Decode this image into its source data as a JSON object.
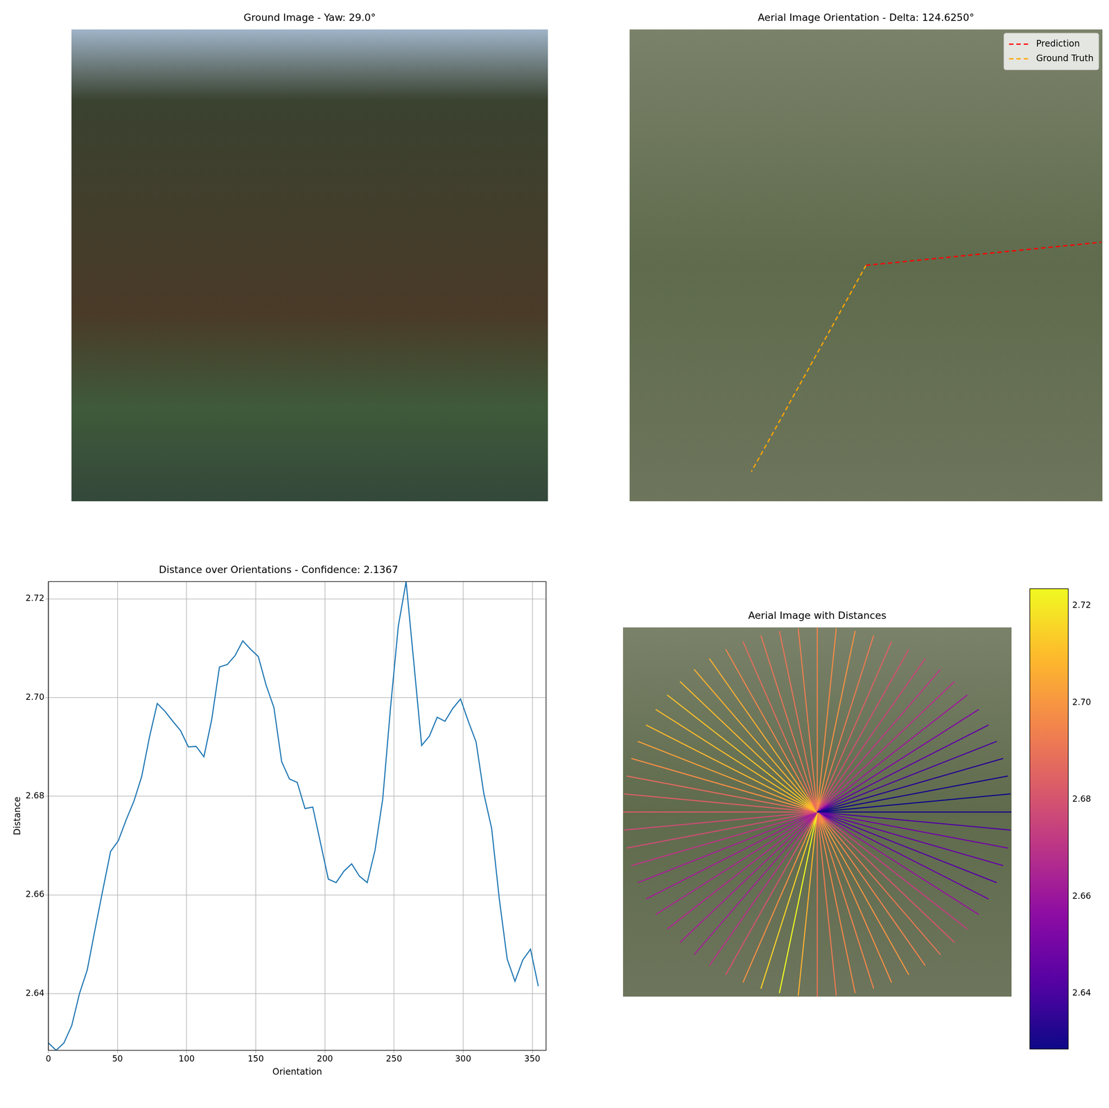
{
  "chart_data": [
    {
      "type": "image",
      "title": "Ground Image - Yaw: 29.0°",
      "tick_labels": false
    },
    {
      "type": "orientation",
      "title": "Aerial Image Orientation - Delta: 124.6250°",
      "legend": "upper right",
      "line_style": "dashed",
      "tick_labels": false,
      "series": [
        {
          "name": "Prediction",
          "color": "#ff0000",
          "angle": 5.625
        },
        {
          "name": "Ground Truth",
          "color": "#ffa500",
          "angle": 241.0
        }
      ]
    },
    {
      "type": "line",
      "title": "Distance over Orientations - Confidence: 2.1367",
      "x_label": "Orientation",
      "y_label": "Distance",
      "color": "#1f77b4",
      "x": [
        0,
        5.625,
        11.25,
        16.875,
        22.5,
        28.125,
        33.75,
        39.375,
        45,
        50.625,
        56.25,
        61.875,
        67.5,
        73.125,
        78.75,
        84.375,
        90,
        95.625,
        101.25,
        106.875,
        112.5,
        118.125,
        123.75,
        129.375,
        135,
        140.625,
        146.25,
        151.875,
        157.5,
        163.125,
        168.75,
        174.375,
        180,
        185.625,
        191.25,
        196.875,
        202.5,
        208.125,
        213.75,
        219.375,
        225,
        230.625,
        236.25,
        241.875,
        247.5,
        253.125,
        258.75,
        264.375,
        270,
        275.625,
        281.25,
        286.875,
        292.5,
        298.125,
        303.75,
        309.375,
        315,
        320.625,
        326.25,
        331.875,
        337.5,
        343.125,
        348.75,
        354.375
      ],
      "values": [
        2.63,
        2.6285,
        2.63,
        2.6335,
        2.64,
        2.6448,
        2.653,
        2.661,
        2.6688,
        2.671,
        2.6752,
        2.679,
        2.684,
        2.692,
        2.6988,
        2.6972,
        2.6952,
        2.6933,
        2.69,
        2.6901,
        2.688,
        2.6955,
        2.7062,
        2.7067,
        2.7085,
        2.7115,
        2.7098,
        2.7083,
        2.7025,
        2.698,
        2.687,
        2.6835,
        2.6828,
        2.6775,
        2.6778,
        2.6705,
        2.6632,
        2.6625,
        2.6648,
        2.6663,
        2.6638,
        2.6625,
        2.669,
        2.6795,
        2.698,
        2.7145,
        2.7235,
        2.707,
        2.6903,
        2.6922,
        2.696,
        2.6952,
        2.6978,
        2.6997,
        2.6952,
        2.691,
        2.6805,
        2.6735,
        2.659,
        2.647,
        2.6425,
        2.6468,
        2.649,
        2.6415
      ],
      "xlim": [
        0,
        360
      ],
      "xticks": [
        0,
        50,
        100,
        150,
        200,
        250,
        300,
        350
      ],
      "ylim": [
        2.6285,
        2.7235
      ],
      "yticks": [
        2.64,
        2.66,
        2.68,
        {
          "value": 2.7,
          "label": "2.70"
        },
        2.72
      ],
      "grid": true
    },
    {
      "type": "radial",
      "title": "Aerial Image with Distances",
      "tick_labels": false,
      "x": [
        0,
        5.625,
        11.25,
        16.875,
        22.5,
        28.125,
        33.75,
        39.375,
        45,
        50.625,
        56.25,
        61.875,
        67.5,
        73.125,
        78.75,
        84.375,
        90,
        95.625,
        101.25,
        106.875,
        112.5,
        118.125,
        123.75,
        129.375,
        135,
        140.625,
        146.25,
        151.875,
        157.5,
        163.125,
        168.75,
        174.375,
        180,
        185.625,
        191.25,
        196.875,
        202.5,
        208.125,
        213.75,
        219.375,
        225,
        230.625,
        236.25,
        241.875,
        247.5,
        253.125,
        258.75,
        264.375,
        270,
        275.625,
        281.25,
        286.875,
        292.5,
        298.125,
        303.75,
        309.375,
        315,
        320.625,
        326.25,
        331.875,
        337.5,
        343.125,
        348.75,
        354.375
      ],
      "values": [
        2.63,
        2.6285,
        2.63,
        2.6335,
        2.64,
        2.6448,
        2.653,
        2.661,
        2.6688,
        2.671,
        2.6752,
        2.679,
        2.684,
        2.692,
        2.6988,
        2.6972,
        2.6952,
        2.6933,
        2.69,
        2.6901,
        2.688,
        2.6955,
        2.7062,
        2.7067,
        2.7085,
        2.7115,
        2.7098,
        2.7083,
        2.7025,
        2.698,
        2.687,
        2.6835,
        2.6828,
        2.6775,
        2.6778,
        2.6705,
        2.6632,
        2.6625,
        2.6648,
        2.6663,
        2.6638,
        2.6625,
        2.669,
        2.6795,
        2.698,
        2.7145,
        2.7235,
        2.707,
        2.6903,
        2.6922,
        2.696,
        2.6952,
        2.6978,
        2.6997,
        2.6952,
        2.691,
        2.6805,
        2.6735,
        2.659,
        2.647,
        2.6425,
        2.6468,
        2.649,
        2.6415
      ],
      "colorbar_range": [
        2.6285,
        2.7235
      ],
      "colorbar_ticks": [
        2.64,
        2.66,
        2.68,
        {
          "value": 2.7,
          "label": "2.70"
        },
        2.72
      ]
    }
  ]
}
